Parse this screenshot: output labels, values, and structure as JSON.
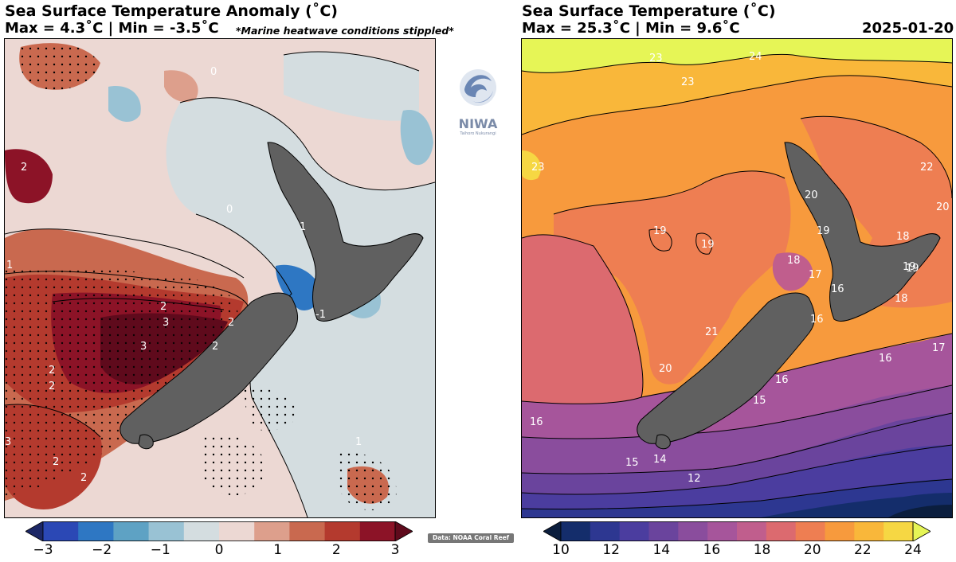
{
  "left_panel": {
    "title": "Sea Surface Temperature Anomaly (˚C)",
    "subtitle": "Max = 4.3˚C | Min = -3.5˚C",
    "note": "*Marine heatwave conditions stippled*",
    "colorbar": {
      "ticks": [
        "−3",
        "−2",
        "−1",
        "0",
        "1",
        "2",
        "3"
      ],
      "colors": [
        "#1c2766",
        "#2b48b5",
        "#2e77c3",
        "#5ea2c4",
        "#99c2d4",
        "#d4dde0",
        "#ecd8d3",
        "#dd9f8c",
        "#c9694f",
        "#b43a2e",
        "#8c1327",
        "#5f0a1c"
      ]
    },
    "contour_labels": [
      "2",
      "2",
      "3",
      "3",
      "2",
      "2",
      "2",
      "1",
      "1",
      "0",
      "0",
      "-1",
      "1",
      "2",
      "2",
      "3",
      "2"
    ]
  },
  "right_panel": {
    "title": "Sea Surface Temperature (˚C)",
    "subtitle": "Max = 25.3˚C | Min = 9.6˚C",
    "date": "2025-01-20",
    "colorbar": {
      "ticks": [
        "10",
        "12",
        "14",
        "16",
        "18",
        "20",
        "22",
        "24"
      ],
      "colors": [
        "#0b1e3e",
        "#142d6b",
        "#2d3791",
        "#4b3d9f",
        "#6a449d",
        "#8a4d9d",
        "#a6559b",
        "#c05e8d",
        "#dc6a6f",
        "#ee7e52",
        "#f79a3d",
        "#f9b73a",
        "#f6d743",
        "#e6f556"
      ]
    },
    "contour_labels": [
      "23",
      "24",
      "23",
      "23",
      "22",
      "20",
      "20",
      "19",
      "19",
      "19",
      "19",
      "18",
      "17",
      "21",
      "20",
      "16",
      "16",
      "18",
      "19",
      "18",
      "17",
      "16",
      "16",
      "15",
      "15",
      "14",
      "12",
      "16"
    ]
  },
  "logo": {
    "name": "NIWA",
    "tagline": "Taihoro Nukurangi",
    "icon": "niwa-wave-icon"
  },
  "credit": "Data: NOAA Coral Reef Watch"
}
